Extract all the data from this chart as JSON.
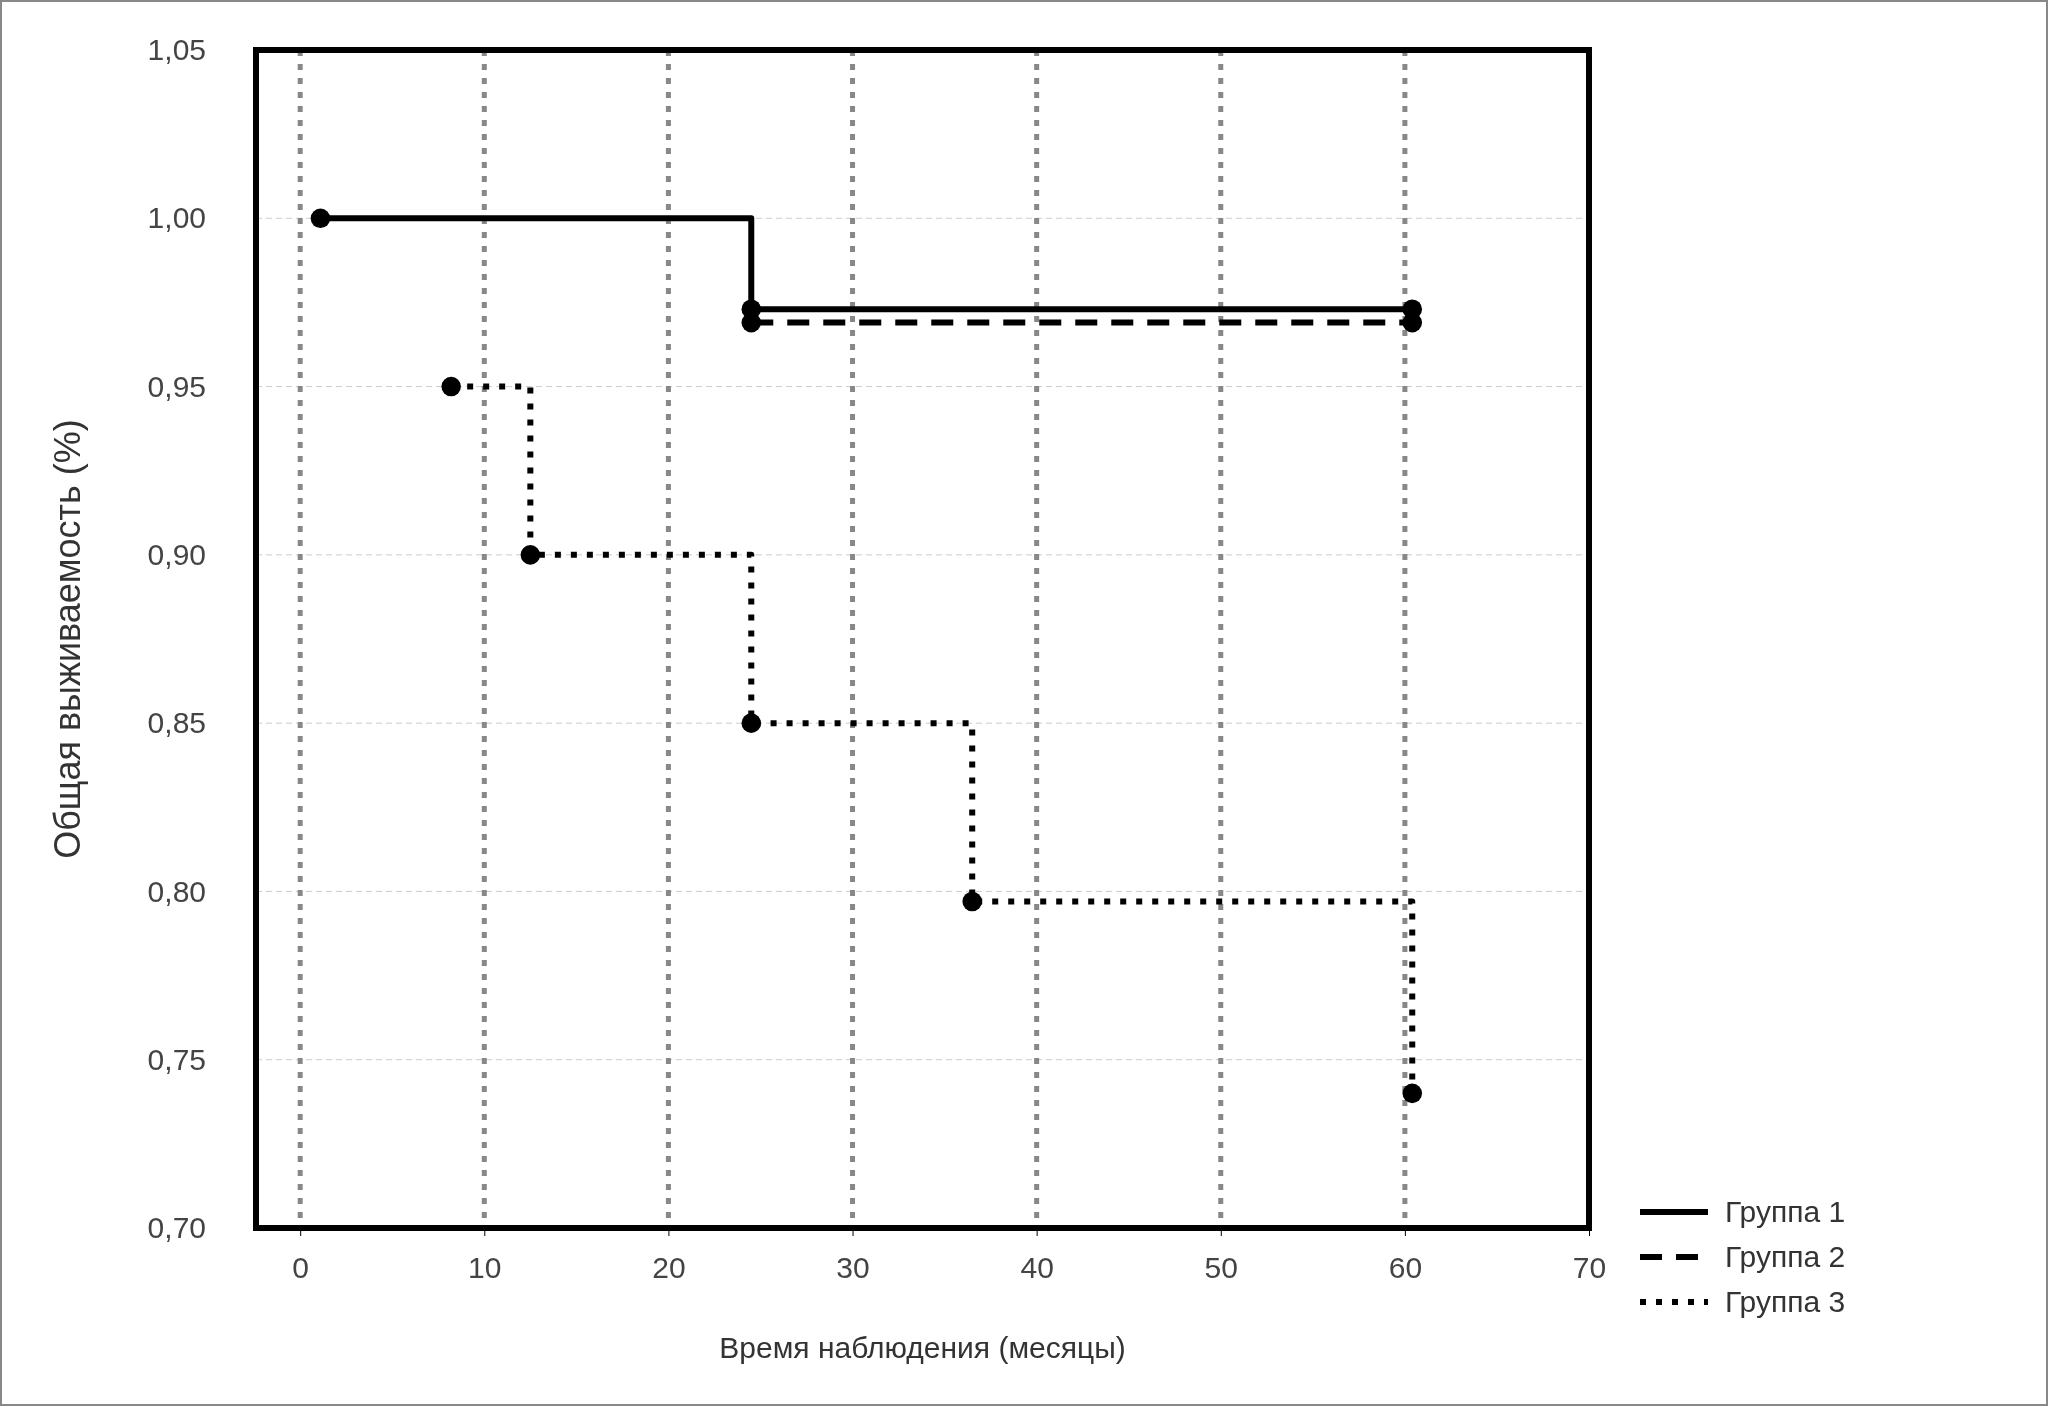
{
  "chart_data": {
    "type": "step",
    "xlabel": "Время наблюдения (месяцы)",
    "ylabel": "Общая выживаемость (%)",
    "xlim": [
      -2.4,
      70
    ],
    "xticks": [
      0,
      10,
      20,
      30,
      40,
      50,
      60,
      70
    ],
    "ylim": [
      0.7,
      1.05
    ],
    "yticks": [
      {
        "value": 0.7,
        "label": "0,70"
      },
      {
        "value": 0.75,
        "label": "0,75"
      },
      {
        "value": 0.8,
        "label": "0,80"
      },
      {
        "value": 0.85,
        "label": "0,85"
      },
      {
        "value": 0.9,
        "label": "0,90"
      },
      {
        "value": 0.95,
        "label": "0,95"
      },
      {
        "value": 1.0,
        "label": "1,00"
      },
      {
        "value": 1.05,
        "label": "1,05"
      }
    ],
    "grid": true,
    "legend": "bottom right",
    "marker": "circle",
    "series": [
      {
        "name": "Группа 1",
        "color": "#000000",
        "line_style": "solid",
        "x": [
          1.1,
          24.5,
          60.4
        ],
        "values": [
          1.0,
          0.973,
          0.973
        ]
      },
      {
        "name": "Группа 2",
        "color": "#000000",
        "line_style": "dashed",
        "x": [
          24.5,
          60.4
        ],
        "values": [
          0.969,
          0.969
        ]
      },
      {
        "name": "Группа 3",
        "color": "#000000",
        "line_style": "dotted",
        "x": [
          8.2,
          12.5,
          24.5,
          36.5,
          60.4
        ],
        "values": [
          0.95,
          0.9,
          0.85,
          0.797,
          0.74
        ]
      }
    ]
  }
}
